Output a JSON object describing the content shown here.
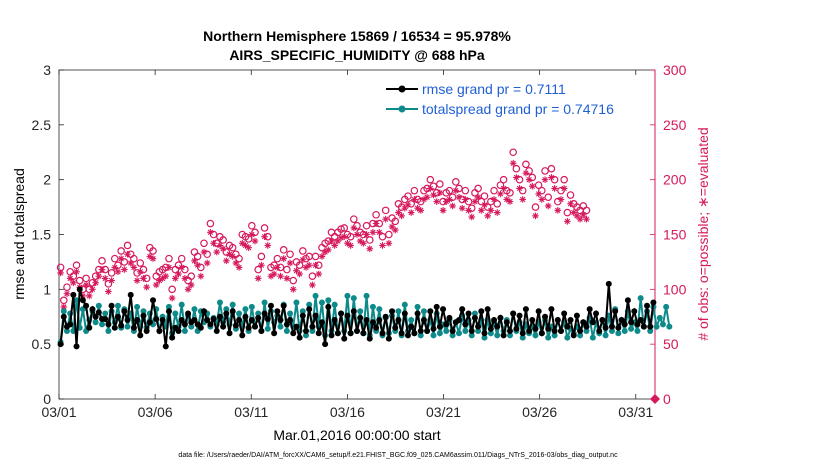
{
  "chart_data": {
    "type": "line",
    "title": "Northern Hemisphere 15869 / 16534 = 95.978%",
    "subtitle": "AIRS_SPECIFIC_HUMIDITY @ 688 hPa",
    "xlabel": "Mar.01,2016 00:00:00 start",
    "ylabel": "rmse and totalspread",
    "ylabel_right": "# of obs: o=possible; ∗=evaluated",
    "ylim": [
      0,
      3
    ],
    "ylim_right": [
      0,
      300
    ],
    "xlim": [
      1,
      32
    ],
    "x_ticks": [
      1,
      6,
      11,
      16,
      21,
      26,
      31
    ],
    "x_tick_labels": [
      "03/01",
      "03/06",
      "03/11",
      "03/16",
      "03/21",
      "03/26",
      "03/31"
    ],
    "y_ticks": [
      0,
      0.5,
      1,
      1.5,
      2,
      2.5,
      3
    ],
    "y_tick_labels": [
      "0",
      "0.5",
      "1",
      "1.5",
      "2",
      "2.5",
      "3"
    ],
    "y_ticks_right": [
      0,
      50,
      100,
      150,
      200,
      250,
      300
    ],
    "y_tick_labels_right": [
      "0",
      "50",
      "100",
      "150",
      "200",
      "250",
      "300"
    ],
    "legend_position": "top-right",
    "footer": "data file: /Users/raeder/DAI/ATM_forcXX/CAM6_setup/f.e21.FHIST_BGC.f09_025.CAM6assim.011/Diags_NTrS_2016-03/obs_diag_output.nc",
    "colors": {
      "rmse": "#000000",
      "spread": "#0e8a8a",
      "obs": "#d6195e",
      "legend_text": "#1f5fd6"
    },
    "series": [
      {
        "name": "rmse",
        "label": "rmse grand pr = 0.7111",
        "values": [
          0.5,
          0.75,
          0.66,
          0.68,
          0.95,
          0.48,
          1.0,
          0.9,
          0.85,
          0.65,
          0.82,
          0.75,
          0.79,
          0.73,
          0.73,
          0.68,
          0.85,
          0.65,
          0.75,
          0.67,
          0.8,
          0.72,
          0.95,
          0.65,
          0.72,
          0.58,
          0.76,
          0.62,
          0.7,
          0.9,
          0.73,
          0.62,
          0.72,
          0.48,
          0.8,
          0.56,
          0.65,
          0.62,
          0.72,
          0.68,
          0.78,
          0.7,
          0.72,
          0.68,
          0.65,
          0.8,
          0.72,
          0.68,
          0.73,
          0.62,
          0.75,
          0.66,
          0.78,
          0.6,
          0.8,
          0.67,
          0.72,
          0.58,
          0.75,
          0.65,
          0.72,
          0.66,
          0.74,
          0.62,
          0.78,
          0.73,
          0.85,
          0.6,
          0.8,
          0.72,
          0.85,
          0.68,
          0.72,
          0.6,
          0.66,
          0.56,
          0.76,
          0.62,
          0.82,
          0.66,
          0.76,
          0.6,
          0.7,
          0.5,
          0.84,
          0.58,
          0.72,
          0.6,
          0.78,
          0.55,
          0.76,
          0.6,
          0.8,
          0.62,
          0.74,
          0.6,
          0.72,
          0.55,
          0.7,
          0.65,
          0.72,
          0.6,
          0.75,
          0.55,
          0.8,
          0.65,
          0.72,
          0.6,
          0.78,
          0.58,
          0.66,
          0.6,
          0.78,
          0.62,
          0.72,
          0.62,
          0.8,
          0.64,
          0.84,
          0.66,
          0.82,
          0.68,
          0.74,
          0.62,
          0.7,
          0.72,
          0.82,
          0.68,
          0.78,
          0.62,
          0.74,
          0.66,
          0.8,
          0.6,
          0.82,
          0.64,
          0.72,
          0.66,
          0.74,
          0.58,
          0.7,
          0.62,
          0.78,
          0.64,
          0.76,
          0.6,
          0.82,
          0.62,
          0.72,
          0.64,
          0.8,
          0.6,
          0.75,
          0.64,
          0.82,
          0.62,
          0.72,
          0.62,
          0.78,
          0.66,
          0.72,
          0.58,
          0.76,
          0.62,
          0.7,
          0.66,
          0.82,
          0.7,
          0.78,
          0.62,
          0.72,
          0.65,
          1.05,
          0.66,
          0.8,
          0.65,
          0.72,
          0.68,
          0.9,
          0.7,
          0.8,
          0.68,
          0.72,
          0.66,
          0.85,
          0.66,
          0.88
        ]
      },
      {
        "name": "totalspread",
        "label": "totalspread grand pr = 0.74716",
        "values": [
          0.52,
          0.8,
          0.62,
          0.78,
          0.62,
          0.9,
          0.65,
          0.82,
          0.62,
          0.72,
          0.8,
          0.7,
          0.85,
          0.68,
          0.78,
          0.62,
          0.8,
          0.7,
          0.85,
          0.65,
          0.82,
          0.66,
          0.78,
          0.62,
          0.84,
          0.66,
          0.8,
          0.65,
          0.78,
          0.68,
          0.82,
          0.62,
          0.75,
          0.66,
          0.84,
          0.6,
          0.78,
          0.66,
          0.86,
          0.62,
          0.76,
          0.66,
          0.82,
          0.62,
          0.8,
          0.7,
          0.78,
          0.66,
          0.74,
          0.68,
          0.88,
          0.7,
          0.82,
          0.68,
          0.86,
          0.64,
          0.78,
          0.66,
          0.82,
          0.62,
          0.84,
          0.66,
          0.78,
          0.62,
          0.88,
          0.64,
          0.8,
          0.7,
          0.76,
          0.66,
          0.86,
          0.62,
          0.78,
          0.66,
          0.88,
          0.62,
          0.8,
          0.58,
          0.86,
          0.62,
          0.94,
          0.66,
          0.88,
          0.58,
          0.9,
          0.62,
          0.86,
          0.6,
          0.78,
          0.62,
          0.94,
          0.6,
          0.92,
          0.62,
          0.8,
          0.6,
          0.94,
          0.58,
          0.84,
          0.62,
          0.82,
          0.58,
          0.74,
          0.6,
          0.76,
          0.62,
          0.8,
          0.58,
          0.86,
          0.62,
          0.72,
          0.6,
          0.84,
          0.58,
          0.8,
          0.62,
          0.72,
          0.58,
          0.78,
          0.6,
          0.68,
          0.62,
          0.72,
          0.58,
          0.7,
          0.6,
          0.76,
          0.62,
          0.72,
          0.58,
          0.78,
          0.62,
          0.72,
          0.56,
          0.72,
          0.6,
          0.7,
          0.58,
          0.74,
          0.62,
          0.72,
          0.58,
          0.78,
          0.62,
          0.7,
          0.56,
          0.68,
          0.6,
          0.66,
          0.58,
          0.7,
          0.6,
          0.72,
          0.56,
          0.66,
          0.58,
          0.72,
          0.62,
          0.7,
          0.56,
          0.64,
          0.6,
          0.66,
          0.58,
          0.7,
          0.62,
          0.74,
          0.56,
          0.7,
          0.6,
          0.72,
          0.58,
          0.76,
          0.62,
          0.82,
          0.6,
          0.72,
          0.62,
          0.8,
          0.64,
          0.7,
          0.62,
          0.92,
          0.66,
          0.8,
          0.62,
          0.84,
          0.66,
          0.74,
          0.68,
          0.84,
          0.66
        ]
      },
      {
        "name": "obs_possible",
        "label": "possible",
        "values": [
          120,
          90,
          102,
          116,
          112,
          122,
          108,
          100,
          110,
          100,
          106,
          112,
          118,
          126,
          118,
          105,
          115,
          128,
          122,
          135,
          125,
          140,
          132,
          128,
          115,
          124,
          118,
          110,
          138,
          135,
          112,
          116,
          118,
          120,
          128,
          100,
          118,
          122,
          128,
          118,
          108,
          112,
          134,
          130,
          120,
          142,
          132,
          160,
          150,
          142,
          148,
          145,
          134,
          140,
          138,
          132,
          128,
          150,
          148,
          146,
          158,
          152,
          118,
          130,
          156,
          148,
          120,
          122,
          128,
          120,
          136,
          118,
          132,
          108,
          125,
          122,
          135,
          128,
          130,
          112,
          130,
          122,
          138,
          142,
          144,
          152,
          148,
          152,
          155,
          156,
          150,
          148,
          164,
          158,
          152,
          150,
          158,
          145,
          160,
          168,
          160,
          148,
          172,
          150,
          165,
          162,
          178,
          175,
          182,
          185,
          178,
          190,
          182,
          180,
          190,
          192,
          200,
          194,
          188,
          196,
          180,
          188,
          190,
          184,
          198,
          192,
          182,
          190,
          180,
          174,
          188,
          192,
          180,
          185,
          175,
          180,
          190,
          178,
          195,
          200,
          190,
          188,
          225,
          210,
          200,
          190,
          214,
          208,
          202,
          175,
          195,
          190,
          208,
          184,
          210,
          200,
          180,
          190,
          200,
          170,
          186,
          178,
          175,
          172,
          176,
          172
        ]
      },
      {
        "name": "obs_evaluated",
        "label": "evaluated",
        "values": [
          115,
          84,
          96,
          110,
          106,
          116,
          102,
          94,
          104,
          94,
          100,
          106,
          112,
          118,
          110,
          98,
          108,
          120,
          116,
          128,
          118,
          132,
          124,
          120,
          108,
          116,
          110,
          102,
          130,
          128,
          104,
          108,
          110,
          112,
          120,
          92,
          110,
          114,
          120,
          110,
          100,
          104,
          126,
          122,
          112,
          134,
          124,
          152,
          142,
          134,
          140,
          137,
          126,
          132,
          130,
          124,
          120,
          142,
          140,
          138,
          150,
          144,
          110,
          122,
          148,
          140,
          112,
          114,
          120,
          112,
          128,
          110,
          124,
          100,
          117,
          114,
          127,
          120,
          122,
          104,
          122,
          114,
          130,
          134,
          136,
          144,
          140,
          144,
          147,
          148,
          142,
          140,
          156,
          150,
          144,
          142,
          150,
          137,
          152,
          160,
          152,
          140,
          164,
          142,
          157,
          154,
          170,
          167,
          174,
          177,
          170,
          182,
          174,
          172,
          182,
          184,
          192,
          186,
          180,
          188,
          172,
          180,
          182,
          176,
          190,
          184,
          174,
          182,
          172,
          166,
          180,
          184,
          172,
          177,
          167,
          172,
          182,
          170,
          187,
          192,
          182,
          180,
          215,
          202,
          192,
          182,
          206,
          200,
          194,
          167,
          187,
          182,
          200,
          176,
          202,
          192,
          172,
          182,
          192,
          162,
          178,
          170,
          167,
          164,
          168,
          164
        ]
      }
    ]
  }
}
